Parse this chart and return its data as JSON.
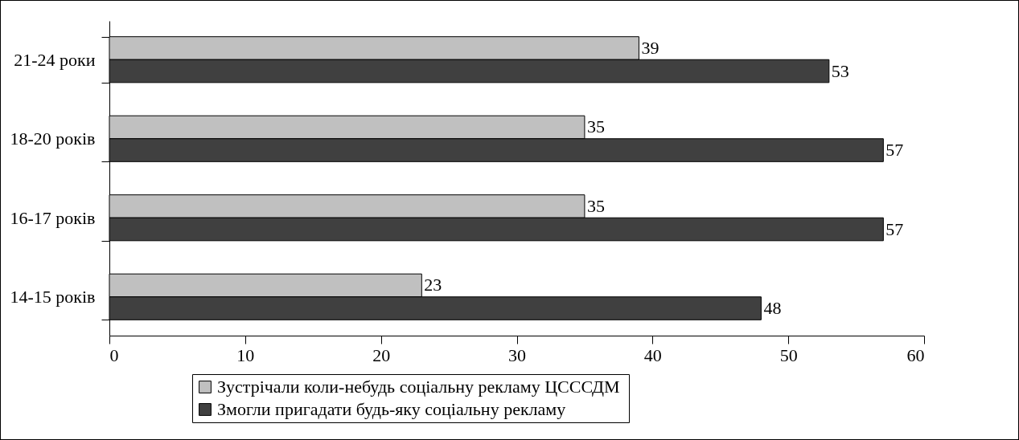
{
  "chart_data": {
    "type": "bar",
    "orientation": "horizontal",
    "categories": [
      "21-24 роки",
      "18-20 років",
      "16-17 років",
      "14-15 років"
    ],
    "series": [
      {
        "name": "Зустрічали  коли-небудь соціальну рекламу ЦСССДМ",
        "color": "#c0c0c0",
        "values": [
          39,
          35,
          35,
          23
        ]
      },
      {
        "name": "Змогли пригадати будь-яку соціальну рекламу",
        "color": "#404040",
        "values": [
          53,
          57,
          57,
          48
        ]
      }
    ],
    "xlim": [
      0,
      60
    ],
    "xticks": [
      0,
      10,
      20,
      30,
      40,
      50,
      60
    ],
    "data_labels": true,
    "legend": "bottom"
  }
}
